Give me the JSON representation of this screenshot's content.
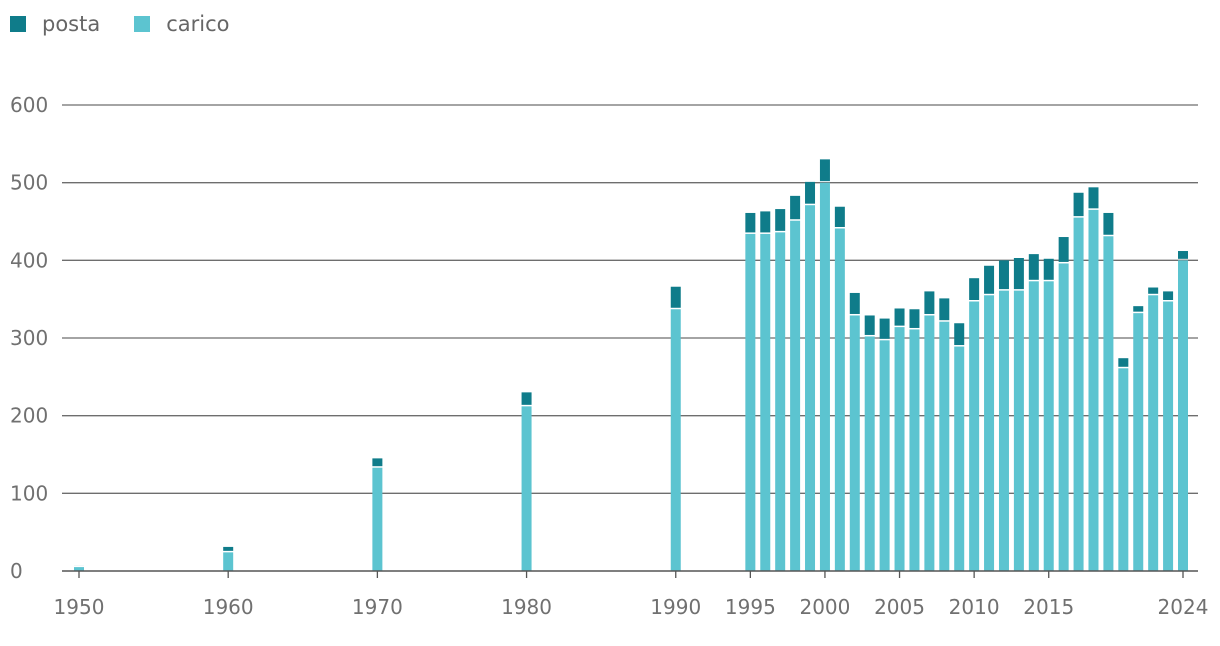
{
  "chart_data": {
    "type": "bar",
    "stacked": true,
    "x": [
      1950,
      1960,
      1970,
      1980,
      1990,
      1995,
      1996,
      1997,
      1998,
      1999,
      2000,
      2001,
      2002,
      2003,
      2004,
      2005,
      2006,
      2007,
      2008,
      2009,
      2010,
      2011,
      2012,
      2013,
      2014,
      2015,
      2016,
      2017,
      2018,
      2019,
      2020,
      2021,
      2022,
      2023,
      2024
    ],
    "series": [
      {
        "name": "carico",
        "color": "#5cc4d0",
        "values": [
          5,
          24,
          133,
          212,
          337,
          434,
          434,
          436,
          451,
          471,
          500,
          441,
          329,
          302,
          297,
          314,
          311,
          329,
          321,
          289,
          347,
          355,
          361,
          361,
          373,
          373,
          396,
          455,
          465,
          431,
          261,
          332,
          355,
          347,
          400
        ]
      },
      {
        "name": "posta",
        "color": "#0f7c8a",
        "values": [
          2,
          7,
          12,
          18,
          29,
          27,
          29,
          30,
          32,
          30,
          30,
          28,
          29,
          27,
          28,
          24,
          26,
          31,
          30,
          30,
          30,
          38,
          39,
          42,
          35,
          29,
          34,
          32,
          29,
          30,
          13,
          9,
          10,
          13,
          12
        ]
      }
    ],
    "ylim": [
      0,
      600
    ],
    "yticks": [
      "0",
      "100",
      "200",
      "300",
      "400",
      "500",
      "600"
    ],
    "xtick_labels": [
      "1950",
      "1960",
      "1970",
      "1980",
      "1990",
      "1995",
      "2000",
      "2005",
      "2010",
      "2015",
      "2024"
    ],
    "legend": [
      {
        "label": "posta",
        "color": "#0f7c8a"
      },
      {
        "label": "carico",
        "color": "#5cc4d0"
      }
    ],
    "legend_position": "top-left",
    "grid": true,
    "title": "",
    "xlabel": "",
    "ylabel": ""
  }
}
